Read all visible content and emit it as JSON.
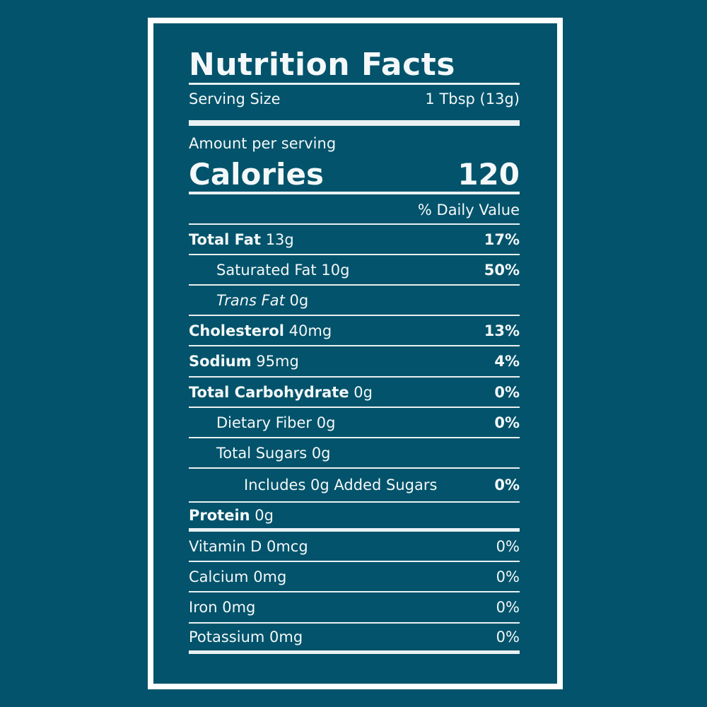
{
  "label": {
    "title": "Nutrition Facts",
    "serving_size_label": "Serving Size",
    "serving_size_value": "1 Tbsp (13g)",
    "amount_per_serving": "Amount per serving",
    "calories_label": "Calories",
    "calories_value": "120",
    "daily_value_header": "% Daily Value",
    "nutrients": [
      {
        "name": "Total Fat",
        "amount": "13g",
        "dv": "17%",
        "bold_name": true,
        "bold_dv": true,
        "indent": 0,
        "italic": false
      },
      {
        "name": "Saturated Fat",
        "amount": "10g",
        "dv": "50%",
        "bold_name": false,
        "bold_dv": true,
        "indent": 1,
        "italic": false
      },
      {
        "name": "Trans Fat",
        "amount": "0g",
        "dv": "",
        "bold_name": false,
        "bold_dv": false,
        "indent": 1,
        "italic": true
      },
      {
        "name": "Cholesterol",
        "amount": "40mg",
        "dv": "13%",
        "bold_name": true,
        "bold_dv": true,
        "indent": 0,
        "italic": false
      },
      {
        "name": "Sodium",
        "amount": "95mg",
        "dv": "4%",
        "bold_name": true,
        "bold_dv": true,
        "indent": 0,
        "italic": false
      },
      {
        "name": "Total Carbohydrate",
        "amount": "0g",
        "dv": "0%",
        "bold_name": true,
        "bold_dv": true,
        "indent": 0,
        "italic": false
      },
      {
        "name": "Dietary Fiber",
        "amount": "0g",
        "dv": "0%",
        "bold_name": false,
        "bold_dv": true,
        "indent": 1,
        "italic": false
      },
      {
        "name": "Total Sugars",
        "amount": "0g",
        "dv": "",
        "bold_name": false,
        "bold_dv": false,
        "indent": 1,
        "italic": false
      },
      {
        "name": "Includes 0g Added Sugars",
        "amount": "",
        "dv": "0%",
        "bold_name": false,
        "bold_dv": true,
        "indent": 2,
        "italic": false
      },
      {
        "name": "Protein",
        "amount": "0g",
        "dv": "",
        "bold_name": true,
        "bold_dv": false,
        "indent": 0,
        "italic": false
      },
      {
        "name": "Vitamin D",
        "amount": "0mcg",
        "dv": "0%",
        "bold_name": false,
        "bold_dv": false,
        "indent": 0,
        "italic": false
      },
      {
        "name": "Calcium",
        "amount": "0mg",
        "dv": "0%",
        "bold_name": false,
        "bold_dv": false,
        "indent": 0,
        "italic": false
      },
      {
        "name": "Iron",
        "amount": "0mg",
        "dv": "0%",
        "bold_name": false,
        "bold_dv": false,
        "indent": 0,
        "italic": false
      },
      {
        "name": "Potassium",
        "amount": "0mg",
        "dv": "0%",
        "bold_name": false,
        "bold_dv": false,
        "indent": 0,
        "italic": false
      }
    ]
  },
  "colors": {
    "background": "#02536b",
    "frame": "#ffffff",
    "text": "#f4f8f9"
  }
}
